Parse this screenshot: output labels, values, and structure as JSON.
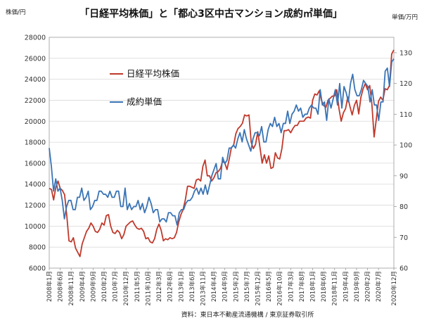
{
  "chart_data": {
    "type": "line",
    "title": "「日経平均株価」と「都心3区中古マンション成約㎡単価」",
    "y_left_unit": "株価/円",
    "y_right_unit": "単価/万円",
    "y_left_range": [
      6000,
      28000
    ],
    "y_left_ticks": [
      "6000",
      "8000",
      "10000",
      "12000",
      "14000",
      "16000",
      "18000",
      "20000",
      "22000",
      "24000",
      "26000",
      "28000"
    ],
    "y_right_range": [
      60,
      135
    ],
    "y_right_ticks": [
      "60",
      "70",
      "80",
      "90",
      "100",
      "110",
      "120",
      "130"
    ],
    "x_ticks": [
      "2008年1月",
      "2008年6月",
      "2008年11月",
      "2009年4月",
      "2009年9月",
      "2010年2月",
      "2010年7月",
      "2010年12月",
      "2011年5月",
      "2011年10月",
      "2012年3月",
      "2012年8月",
      "2013年1月",
      "2013年6月",
      "2013年11月",
      "2014年4月",
      "2014年9月",
      "2015年2月",
      "2015年7月",
      "2015年12月",
      "2016年5月",
      "2016年10月",
      "2017年3月",
      "2017年8月",
      "2018年1月",
      "2018年6月",
      "2018年11月",
      "2019年4月",
      "2019年9月",
      "2020年2月",
      "2020年7月",
      "2020年12月"
    ],
    "grid": true,
    "legend_position": "top-left",
    "source": "資料：東日本不動産流通機構 / 東京証券取引所",
    "series": [
      {
        "name": "日経平均株価",
        "axis": "left",
        "color": "#c0392b",
        "values": [
          13600,
          13500,
          12500,
          13700,
          14300,
          13600,
          13400,
          13000,
          11000,
          8600,
          8500,
          8900,
          7900,
          7500,
          7100,
          8300,
          8900,
          9500,
          9800,
          10300,
          10000,
          9500,
          9400,
          9700,
          10300,
          10100,
          11000,
          11100,
          10000,
          9400,
          9300,
          9600,
          9400,
          8800,
          9200,
          10000,
          10200,
          10400,
          10500,
          10100,
          9800,
          9700,
          9800,
          9500,
          8800,
          8900,
          8500,
          8400,
          8800,
          9700,
          10200,
          9600,
          8600,
          8800,
          8700,
          8900,
          8800,
          8900,
          9400,
          10400,
          11100,
          11600,
          12500,
          13800,
          13800,
          13700,
          13600,
          14400,
          14500,
          14300,
          15700,
          16300,
          14800,
          14800,
          14300,
          14600,
          15100,
          15200,
          15500,
          16200,
          16000,
          15400,
          16400,
          17500,
          17700,
          18800,
          19300,
          19500,
          19800,
          20600,
          20500,
          20600,
          18000,
          17400,
          17800,
          19000,
          17500,
          16000,
          16800,
          16000,
          16700,
          15500,
          15600,
          17000,
          16500,
          16400,
          17400,
          19100,
          19100,
          19200,
          18900,
          19300,
          19600,
          19600,
          20000,
          20000,
          20000,
          20300,
          20400,
          20300,
          22000,
          22600,
          22500,
          22900,
          22000,
          21500,
          21300,
          22000,
          22200,
          22400,
          22400,
          23000,
          21200,
          20000,
          20800,
          21200,
          22300,
          21400,
          20600,
          21500,
          22000,
          20700,
          22300,
          23100,
          23600,
          23000,
          23400,
          21600,
          18500,
          20200,
          21900,
          22300,
          22000,
          23100,
          23000,
          23400,
          26400,
          26800
        ]
      },
      {
        "name": "成約単価",
        "axis": "right",
        "color": "#3a74b5",
        "values": [
          99,
          93,
          85,
          89,
          85,
          86,
          82,
          76,
          80,
          82,
          82,
          79,
          79,
          83,
          83,
          86,
          82,
          83,
          85,
          79,
          80,
          82,
          82,
          85,
          85,
          84,
          84,
          83,
          85,
          83,
          83,
          85,
          85,
          80,
          80,
          86,
          79,
          81,
          79,
          80,
          80,
          82,
          79,
          81,
          78,
          80,
          83,
          81,
          78,
          79,
          79,
          75,
          76,
          76,
          75,
          78,
          78,
          77,
          77,
          74,
          78,
          79,
          79,
          81,
          82,
          82,
          83,
          85,
          86,
          84,
          86,
          84,
          87,
          84,
          87,
          90,
          92,
          94,
          89,
          89,
          96,
          94,
          95,
          99,
          99,
          100,
          99,
          102,
          104,
          101,
          105,
          102,
          100,
          98,
          102,
          104,
          104,
          103,
          106,
          101,
          101,
          105,
          107,
          106,
          109,
          106,
          107,
          104,
          107,
          107,
          111,
          107,
          110,
          111,
          113,
          111,
          112,
          109,
          110,
          110,
          112,
          113,
          112,
          112,
          110,
          118,
          113,
          114,
          108,
          115,
          112,
          115,
          118,
          113,
          120,
          112,
          119,
          117,
          114,
          120,
          123,
          118,
          116,
          116,
          118,
          121,
          120,
          119,
          114,
          118,
          113,
          113,
          108,
          114,
          114,
          124,
          125,
          119,
          127,
          128
        ]
      }
    ]
  }
}
